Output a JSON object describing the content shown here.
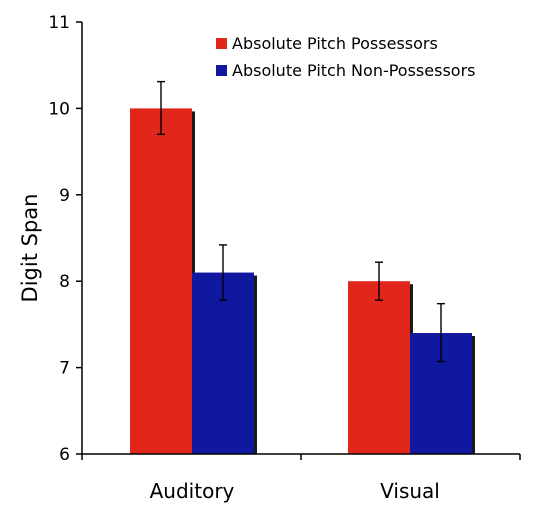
{
  "chart_data": {
    "type": "bar",
    "ylabel": "Digit Span",
    "xlabel": "",
    "ylim": [
      6,
      11
    ],
    "yticks": [
      6,
      7,
      8,
      9,
      10,
      11
    ],
    "grid": false,
    "legend_position": "top-right",
    "categories": [
      "Auditory",
      "Visual"
    ],
    "series": [
      {
        "name": "Absolute Pitch Possessors",
        "color": "#e1261c",
        "values": [
          10.0,
          8.0
        ],
        "error_low": [
          9.7,
          7.78
        ],
        "error_high": [
          10.31,
          8.22
        ]
      },
      {
        "name": "Absolute Pitch Non-Possessors",
        "color": "#1118a0",
        "values": [
          8.1,
          7.4
        ],
        "error_low": [
          7.78,
          7.07
        ],
        "error_high": [
          8.42,
          7.74
        ]
      }
    ]
  }
}
